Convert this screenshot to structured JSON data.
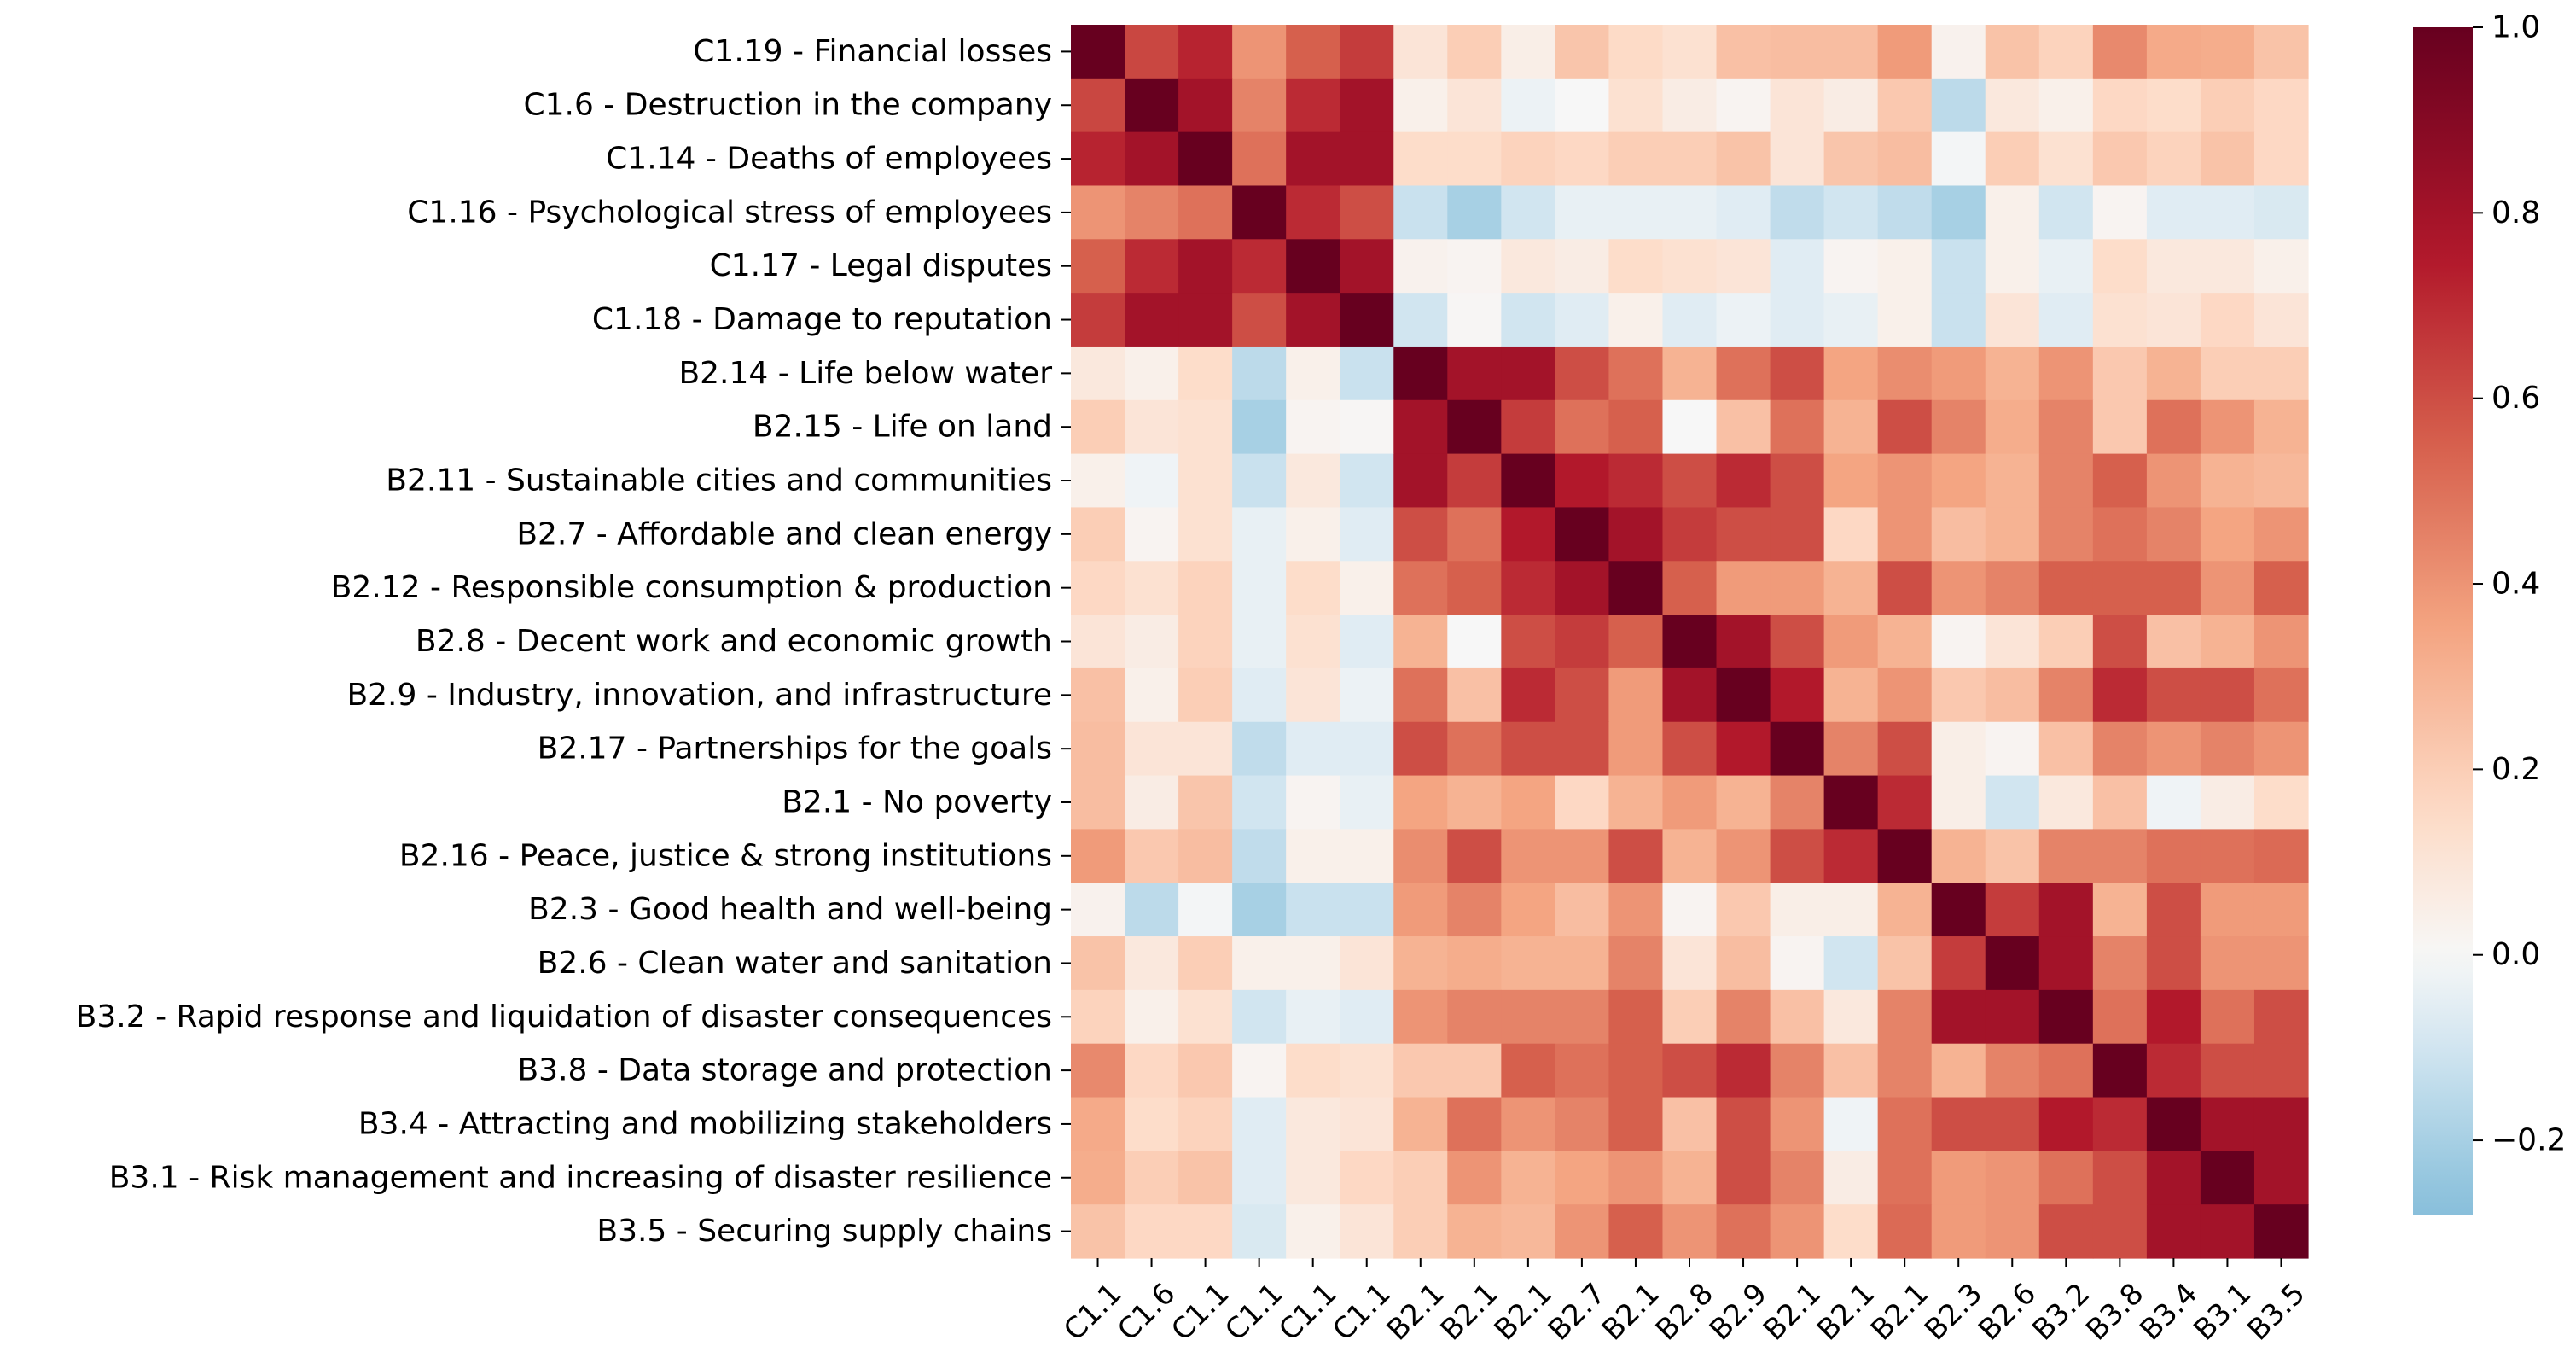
{
  "chart_data": {
    "type": "heatmap",
    "title": "",
    "xlabel": "",
    "ylabel": "",
    "row_labels": [
      "C1.19 - Financial losses",
      "C1.6 - Destruction in the company",
      "C1.14 - Deaths of employees",
      "C1.16 - Psychological stress of employees",
      "C1.17 - Legal disputes",
      "C1.18 - Damage to reputation",
      "B2.14 - Life below water",
      "B2.15 - Life on land",
      "B2.11 - Sustainable cities and communities",
      "B2.7 - Affordable and clean energy",
      "B2.12 - Responsible consumption & production",
      "B2.8 - Decent work and economic growth",
      "B2.9 - Industry, innovation, and infrastructure",
      "B2.17 - Partnerships for the goals",
      "B2.1 - No poverty",
      "B2.16 - Peace, justice & strong institutions",
      "B2.3 - Good health and well-being",
      "B2.6 - Clean water and sanitation",
      "B3.2 - Rapid response and liquidation of disaster consequences",
      "B3.8 - Data storage and protection",
      "B3.4 - Attracting and mobilizing stakeholders",
      "B3.1 - Risk management and increasing of disaster resilience",
      "B3.5 - Securing supply chains"
    ],
    "col_labels": [
      "C1.1",
      "C1.6",
      "C1.1",
      "C1.1",
      "C1.1",
      "C1.1",
      "B2.1",
      "B2.1",
      "B2.1",
      "B2.7",
      "B2.1",
      "B2.8",
      "B2.9",
      "B2.1",
      "B2.1",
      "B2.1",
      "B2.3",
      "B2.6",
      "B3.2",
      "B3.8",
      "B3.4",
      "B3.1",
      "B3.5"
    ],
    "values": [
      [
        1.0,
        0.62,
        0.72,
        0.4,
        0.55,
        0.65,
        0.1,
        0.2,
        0.05,
        0.23,
        0.15,
        0.12,
        0.25,
        0.26,
        0.26,
        0.38,
        0.03,
        0.24,
        0.18,
        0.43,
        0.33,
        0.32,
        0.24
      ],
      [
        0.62,
        1.0,
        0.8,
        0.45,
        0.7,
        0.8,
        0.04,
        0.1,
        -0.03,
        0.0,
        0.12,
        0.06,
        0.02,
        0.1,
        0.06,
        0.22,
        -0.15,
        0.08,
        0.04,
        0.16,
        0.14,
        0.2,
        0.16
      ],
      [
        0.72,
        0.8,
        1.0,
        0.5,
        0.8,
        0.8,
        0.14,
        0.14,
        0.18,
        0.16,
        0.2,
        0.2,
        0.24,
        0.1,
        0.23,
        0.26,
        -0.01,
        0.2,
        0.12,
        0.22,
        0.18,
        0.24,
        0.16
      ],
      [
        0.4,
        0.45,
        0.5,
        1.0,
        0.7,
        0.6,
        -0.12,
        -0.2,
        -0.1,
        -0.04,
        -0.04,
        -0.04,
        -0.06,
        -0.14,
        -0.1,
        -0.14,
        -0.2,
        0.04,
        -0.1,
        0.02,
        -0.06,
        -0.06,
        -0.08
      ],
      [
        0.55,
        0.7,
        0.8,
        0.7,
        1.0,
        0.8,
        0.03,
        0.02,
        0.08,
        0.06,
        0.14,
        0.12,
        0.1,
        -0.06,
        0.02,
        0.04,
        -0.12,
        0.04,
        -0.04,
        0.14,
        0.08,
        0.08,
        0.04
      ],
      [
        0.65,
        0.8,
        0.8,
        0.6,
        0.8,
        1.0,
        -0.1,
        0.01,
        -0.1,
        -0.06,
        0.04,
        -0.06,
        -0.03,
        -0.06,
        -0.04,
        0.04,
        -0.12,
        0.1,
        -0.06,
        0.12,
        0.1,
        0.16,
        0.1
      ],
      [
        0.08,
        0.04,
        0.14,
        -0.15,
        0.04,
        -0.12,
        1.0,
        0.8,
        0.8,
        0.6,
        0.5,
        0.3,
        0.5,
        0.6,
        0.35,
        0.42,
        0.38,
        0.3,
        0.4,
        0.22,
        0.3,
        0.2,
        0.2
      ],
      [
        0.2,
        0.1,
        0.12,
        -0.2,
        0.02,
        0.01,
        0.8,
        1.0,
        0.65,
        0.5,
        0.55,
        0.0,
        0.25,
        0.5,
        0.3,
        0.6,
        0.45,
        0.32,
        0.45,
        0.22,
        0.5,
        0.4,
        0.3
      ],
      [
        0.04,
        -0.02,
        0.12,
        -0.12,
        0.08,
        -0.1,
        0.8,
        0.65,
        1.0,
        0.75,
        0.7,
        0.6,
        0.7,
        0.6,
        0.35,
        0.4,
        0.35,
        0.3,
        0.45,
        0.55,
        0.4,
        0.3,
        0.28
      ],
      [
        0.2,
        0.02,
        0.12,
        -0.04,
        0.04,
        -0.06,
        0.6,
        0.5,
        0.75,
        1.0,
        0.8,
        0.65,
        0.6,
        0.6,
        0.16,
        0.4,
        0.26,
        0.3,
        0.45,
        0.5,
        0.45,
        0.35,
        0.4
      ],
      [
        0.16,
        0.12,
        0.18,
        -0.04,
        0.14,
        0.04,
        0.5,
        0.55,
        0.7,
        0.8,
        1.0,
        0.55,
        0.38,
        0.38,
        0.3,
        0.6,
        0.4,
        0.45,
        0.55,
        0.55,
        0.55,
        0.4,
        0.55
      ],
      [
        0.1,
        0.06,
        0.18,
        -0.04,
        0.12,
        -0.06,
        0.3,
        0.0,
        0.6,
        0.65,
        0.55,
        1.0,
        0.8,
        0.6,
        0.38,
        0.3,
        0.02,
        0.1,
        0.2,
        0.6,
        0.25,
        0.3,
        0.4
      ],
      [
        0.25,
        0.04,
        0.2,
        -0.06,
        0.1,
        -0.03,
        0.5,
        0.25,
        0.7,
        0.6,
        0.38,
        0.8,
        1.0,
        0.75,
        0.3,
        0.4,
        0.22,
        0.26,
        0.45,
        0.7,
        0.6,
        0.6,
        0.5
      ],
      [
        0.26,
        0.1,
        0.1,
        -0.14,
        -0.06,
        -0.06,
        0.6,
        0.5,
        0.6,
        0.6,
        0.38,
        0.6,
        0.75,
        1.0,
        0.45,
        0.6,
        0.05,
        0.02,
        0.25,
        0.45,
        0.4,
        0.45,
        0.4
      ],
      [
        0.26,
        0.06,
        0.23,
        -0.1,
        0.02,
        -0.04,
        0.35,
        0.3,
        0.35,
        0.16,
        0.3,
        0.38,
        0.3,
        0.45,
        1.0,
        0.7,
        0.05,
        -0.1,
        0.08,
        0.25,
        -0.02,
        0.06,
        0.14
      ],
      [
        0.38,
        0.22,
        0.26,
        -0.14,
        0.04,
        0.04,
        0.42,
        0.6,
        0.4,
        0.4,
        0.6,
        0.3,
        0.4,
        0.6,
        0.7,
        1.0,
        0.3,
        0.24,
        0.45,
        0.45,
        0.5,
        0.5,
        0.52
      ],
      [
        0.03,
        -0.15,
        -0.01,
        -0.2,
        -0.12,
        -0.12,
        0.38,
        0.45,
        0.35,
        0.26,
        0.4,
        0.02,
        0.22,
        0.05,
        0.05,
        0.3,
        1.0,
        0.65,
        0.8,
        0.3,
        0.6,
        0.38,
        0.38
      ],
      [
        0.24,
        0.08,
        0.2,
        0.04,
        0.04,
        0.1,
        0.3,
        0.32,
        0.3,
        0.3,
        0.45,
        0.1,
        0.26,
        0.02,
        -0.1,
        0.24,
        0.65,
        1.0,
        0.8,
        0.45,
        0.6,
        0.4,
        0.4
      ],
      [
        0.18,
        0.04,
        0.12,
        -0.1,
        -0.04,
        -0.06,
        0.4,
        0.45,
        0.45,
        0.45,
        0.55,
        0.2,
        0.45,
        0.25,
        0.08,
        0.45,
        0.8,
        0.8,
        1.0,
        0.5,
        0.75,
        0.5,
        0.6
      ],
      [
        0.43,
        0.16,
        0.22,
        0.02,
        0.14,
        0.12,
        0.22,
        0.22,
        0.55,
        0.5,
        0.55,
        0.6,
        0.7,
        0.45,
        0.25,
        0.45,
        0.3,
        0.45,
        0.5,
        1.0,
        0.7,
        0.6,
        0.6
      ],
      [
        0.33,
        0.14,
        0.18,
        -0.06,
        0.08,
        0.1,
        0.3,
        0.5,
        0.4,
        0.45,
        0.55,
        0.25,
        0.6,
        0.4,
        -0.02,
        0.5,
        0.6,
        0.6,
        0.75,
        0.7,
        1.0,
        0.8,
        0.8
      ],
      [
        0.32,
        0.2,
        0.24,
        -0.06,
        0.08,
        0.16,
        0.2,
        0.4,
        0.3,
        0.35,
        0.4,
        0.3,
        0.6,
        0.45,
        0.06,
        0.5,
        0.38,
        0.4,
        0.5,
        0.6,
        0.8,
        1.0,
        0.8
      ],
      [
        0.24,
        0.16,
        0.16,
        -0.08,
        0.04,
        0.1,
        0.2,
        0.3,
        0.28,
        0.4,
        0.55,
        0.4,
        0.5,
        0.4,
        0.14,
        0.52,
        0.38,
        0.4,
        0.6,
        0.6,
        0.8,
        0.8,
        1.0
      ]
    ],
    "vmin": -0.28,
    "vmax": 1.0,
    "colormap": "RdBu_r (centered at 0)",
    "colorbar_ticks": [
      "1.0",
      "0.8",
      "0.6",
      "0.4",
      "0.2",
      "0.0",
      "−0.2"
    ],
    "colorbar_tick_values": [
      1.0,
      0.8,
      0.6,
      0.4,
      0.2,
      0.0,
      -0.2
    ],
    "legend": "colorbar right"
  }
}
